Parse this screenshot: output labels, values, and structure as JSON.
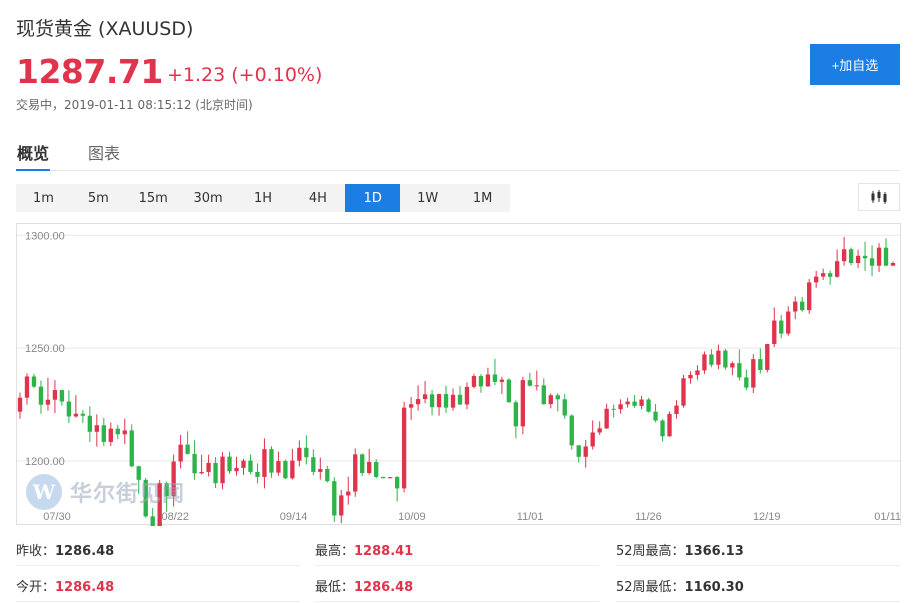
{
  "header": {
    "title": "现货黄金 (XAUUSD)",
    "price": "1287.71",
    "change": "+1.23 (+0.10%)",
    "status": "交易中，2019-01-11 08:15:12 (北京时间)",
    "add_watch_label": "+加自选"
  },
  "tabs": [
    {
      "label": "概览",
      "active": true
    },
    {
      "label": "图表",
      "active": false
    }
  ],
  "periods": [
    {
      "label": "1m",
      "active": false
    },
    {
      "label": "5m",
      "active": false
    },
    {
      "label": "15m",
      "active": false
    },
    {
      "label": "30m",
      "active": false
    },
    {
      "label": "1H",
      "active": false
    },
    {
      "label": "4H",
      "active": false
    },
    {
      "label": "1D",
      "active": true
    },
    {
      "label": "1W",
      "active": false
    },
    {
      "label": "1M",
      "active": false
    }
  ],
  "chart_type_icon": "candlestick-icon",
  "watermark": {
    "logo_letter": "W",
    "text": "华尔街见闻"
  },
  "colors": {
    "up": "#e0334c",
    "down": "#2db34a",
    "accent": "#1a7ee5"
  },
  "chart_data": {
    "type": "candlestick",
    "ylim": [
      1180,
      1305
    ],
    "y_ticks": [
      "1300.00",
      "1250.00",
      "1200.00"
    ],
    "x_tick_labels": [
      "07/30",
      "08/22",
      "09/14",
      "10/09",
      "11/01",
      "11/26",
      "12/19",
      "01/11"
    ],
    "grid": true,
    "ohlc": [
      [
        1221.8,
        1230.3,
        1218.7,
        1228.0
      ],
      [
        1228.0,
        1238.8,
        1224.9,
        1237.4
      ],
      [
        1237.4,
        1238.6,
        1232.3,
        1232.9
      ],
      [
        1232.9,
        1235.6,
        1220.9,
        1224.9
      ],
      [
        1224.9,
        1236.8,
        1222.3,
        1227.1
      ],
      [
        1227.1,
        1235.8,
        1221.2,
        1231.4
      ],
      [
        1231.4,
        1231.6,
        1224.5,
        1226.3
      ],
      [
        1226.3,
        1231.3,
        1216.8,
        1219.7
      ],
      [
        1219.7,
        1229.1,
        1219.2,
        1220.9
      ],
      [
        1220.9,
        1222.6,
        1216.8,
        1220.0
      ],
      [
        1220.0,
        1224.2,
        1208.4,
        1212.9
      ],
      [
        1212.9,
        1220.6,
        1206.3,
        1215.8
      ],
      [
        1215.8,
        1219.0,
        1206.6,
        1208.4
      ],
      [
        1208.4,
        1217.0,
        1206.6,
        1214.3
      ],
      [
        1214.3,
        1216.0,
        1209.7,
        1211.8
      ],
      [
        1211.8,
        1218.7,
        1207.5,
        1213.5
      ],
      [
        1213.5,
        1216.2,
        1197.2,
        1197.6
      ],
      [
        1197.6,
        1197.9,
        1185.4,
        1191.6
      ],
      [
        1191.6,
        1192.5,
        1174.8,
        1175.4
      ],
      [
        1175.4,
        1179.1,
        1167.9,
        1170.6
      ],
      [
        1170.6,
        1191.5,
        1169.5,
        1190.1
      ],
      [
        1190.1,
        1190.8,
        1177.4,
        1184.3
      ],
      [
        1184.3,
        1202.8,
        1179.8,
        1199.7
      ],
      [
        1199.7,
        1211.5,
        1196.6,
        1207.2
      ],
      [
        1207.2,
        1213.1,
        1202.8,
        1203.1
      ],
      [
        1203.1,
        1209.1,
        1191.6,
        1194.5
      ],
      [
        1194.5,
        1202.7,
        1194.0,
        1195.1
      ],
      [
        1195.1,
        1202.7,
        1193.1,
        1199.1
      ],
      [
        1199.1,
        1201.7,
        1188.0,
        1190.1
      ],
      [
        1190.1,
        1204.0,
        1187.4,
        1201.9
      ],
      [
        1201.9,
        1204.1,
        1194.3,
        1195.4
      ],
      [
        1195.4,
        1201.8,
        1193.5,
        1196.9
      ],
      [
        1196.9,
        1200.9,
        1193.8,
        1200.1
      ],
      [
        1200.1,
        1202.8,
        1194.1,
        1195.1
      ],
      [
        1195.1,
        1198.9,
        1190.0,
        1192.9
      ],
      [
        1192.9,
        1210.0,
        1187.8,
        1205.2
      ],
      [
        1205.2,
        1206.5,
        1192.5,
        1194.8
      ],
      [
        1194.8,
        1204.1,
        1193.4,
        1199.9
      ],
      [
        1199.9,
        1200.6,
        1191.9,
        1192.3
      ],
      [
        1192.3,
        1205.3,
        1191.7,
        1200.1
      ],
      [
        1200.1,
        1209.1,
        1197.5,
        1205.8
      ],
      [
        1205.8,
        1211.3,
        1198.4,
        1201.6
      ],
      [
        1201.6,
        1205.1,
        1193.6,
        1195.1
      ],
      [
        1195.1,
        1201.4,
        1191.7,
        1196.4
      ],
      [
        1196.4,
        1197.8,
        1190.4,
        1191.0
      ],
      [
        1191.0,
        1192.8,
        1172.9,
        1175.8
      ],
      [
        1175.8,
        1187.2,
        1172.4,
        1184.7
      ],
      [
        1184.7,
        1193.0,
        1180.6,
        1186.4
      ],
      [
        1186.4,
        1205.5,
        1184.1,
        1202.9
      ],
      [
        1202.9,
        1203.3,
        1193.2,
        1194.6
      ],
      [
        1194.6,
        1205.3,
        1193.9,
        1199.5
      ],
      [
        1199.5,
        1200.8,
        1192.3,
        1192.9
      ],
      [
        1192.9,
        1192.3,
        1192.9,
        1192.3
      ],
      [
        1192.3,
        1192.8,
        1192.3,
        1192.8
      ],
      [
        1192.8,
        1193.3,
        1182.0,
        1187.8
      ],
      [
        1187.8,
        1226.2,
        1186.0,
        1223.6
      ],
      [
        1223.6,
        1228.3,
        1218.2,
        1225.1
      ],
      [
        1225.1,
        1233.5,
        1222.3,
        1227.4
      ],
      [
        1227.4,
        1235.4,
        1225.5,
        1229.5
      ],
      [
        1229.5,
        1231.4,
        1220.2,
        1223.8
      ],
      [
        1223.8,
        1229.8,
        1220.0,
        1229.6
      ],
      [
        1229.6,
        1233.3,
        1221.3,
        1223.6
      ],
      [
        1223.6,
        1232.1,
        1222.2,
        1229.3
      ],
      [
        1229.3,
        1233.2,
        1224.8,
        1225.0
      ],
      [
        1225.0,
        1234.8,
        1222.9,
        1232.8
      ],
      [
        1232.8,
        1238.6,
        1232.1,
        1237.6
      ],
      [
        1237.6,
        1238.5,
        1230.2,
        1233.0
      ],
      [
        1233.0,
        1241.3,
        1232.8,
        1238.3
      ],
      [
        1238.3,
        1245.2,
        1233.6,
        1235.0
      ],
      [
        1235.0,
        1237.3,
        1229.7,
        1236.0
      ],
      [
        1236.0,
        1236.7,
        1225.8,
        1226.0
      ],
      [
        1226.0,
        1226.8,
        1210.0,
        1215.3
      ],
      [
        1215.3,
        1237.3,
        1211.8,
        1235.8
      ],
      [
        1235.8,
        1239.1,
        1233.0,
        1233.3
      ],
      [
        1233.3,
        1240.0,
        1231.2,
        1233.5
      ],
      [
        1233.5,
        1236.6,
        1224.8,
        1225.2
      ],
      [
        1225.2,
        1229.9,
        1223.3,
        1229.1
      ],
      [
        1229.1,
        1230.0,
        1221.9,
        1227.3
      ],
      [
        1227.3,
        1229.6,
        1218.6,
        1220.1
      ],
      [
        1220.1,
        1220.6,
        1205.0,
        1206.9
      ],
      [
        1206.9,
        1206.9,
        1199.3,
        1201.8
      ],
      [
        1201.8,
        1209.3,
        1197.0,
        1206.4
      ],
      [
        1206.4,
        1217.9,
        1205.0,
        1212.6
      ],
      [
        1212.6,
        1217.5,
        1211.5,
        1214.4
      ],
      [
        1214.4,
        1225.4,
        1214.1,
        1223.1
      ],
      [
        1223.1,
        1225.0,
        1219.2,
        1222.9
      ],
      [
        1222.9,
        1227.3,
        1220.9,
        1225.1
      ],
      [
        1225.1,
        1228.0,
        1223.6,
        1226.3
      ],
      [
        1226.3,
        1229.2,
        1223.5,
        1224.4
      ],
      [
        1224.4,
        1228.8,
        1222.9,
        1227.2
      ],
      [
        1227.2,
        1227.9,
        1221.4,
        1221.8
      ],
      [
        1221.8,
        1225.2,
        1217.1,
        1217.9
      ],
      [
        1217.9,
        1218.5,
        1208.6,
        1210.9
      ],
      [
        1210.9,
        1221.9,
        1210.7,
        1220.8
      ],
      [
        1220.8,
        1226.9,
        1218.7,
        1224.5
      ],
      [
        1224.5,
        1238.1,
        1223.6,
        1236.6
      ],
      [
        1236.6,
        1239.7,
        1234.2,
        1238.1
      ],
      [
        1238.1,
        1242.4,
        1236.0,
        1240.1
      ],
      [
        1240.1,
        1248.5,
        1238.5,
        1247.2
      ],
      [
        1247.2,
        1249.5,
        1241.5,
        1242.6
      ],
      [
        1242.6,
        1251.6,
        1240.6,
        1248.9
      ],
      [
        1248.9,
        1249.7,
        1240.4,
        1241.4
      ],
      [
        1241.4,
        1244.1,
        1238.0,
        1243.3
      ],
      [
        1243.3,
        1249.4,
        1235.6,
        1237.0
      ],
      [
        1237.0,
        1240.5,
        1231.3,
        1232.5
      ],
      [
        1232.5,
        1247.3,
        1230.1,
        1245.1
      ],
      [
        1245.1,
        1249.8,
        1238.7,
        1240.3
      ],
      [
        1240.3,
        1251.9,
        1239.2,
        1251.8
      ],
      [
        1251.8,
        1268.0,
        1250.4,
        1262.2
      ],
      [
        1262.2,
        1264.7,
        1254.4,
        1256.4
      ],
      [
        1256.4,
        1268.5,
        1255.5,
        1266.2
      ],
      [
        1266.2,
        1272.9,
        1262.8,
        1270.6
      ],
      [
        1270.6,
        1272.7,
        1266.1,
        1266.8
      ],
      [
        1266.8,
        1280.6,
        1265.2,
        1279.1
      ],
      [
        1279.1,
        1284.2,
        1276.7,
        1281.7
      ],
      [
        1281.7,
        1285.2,
        1280.2,
        1283.2
      ],
      [
        1283.2,
        1284.4,
        1278.1,
        1281.6
      ],
      [
        1281.6,
        1293.7,
        1281.2,
        1288.5
      ],
      [
        1288.5,
        1299.3,
        1286.5,
        1293.8
      ],
      [
        1293.8,
        1294.6,
        1286.7,
        1287.7
      ],
      [
        1287.7,
        1293.6,
        1285.4,
        1290.9
      ],
      [
        1290.9,
        1297.1,
        1284.2,
        1289.8
      ],
      [
        1289.8,
        1295.5,
        1281.8,
        1286.5
      ],
      [
        1286.5,
        1296.5,
        1283.7,
        1294.5
      ],
      [
        1294.5,
        1298.6,
        1287.5,
        1286.5
      ],
      [
        1286.5,
        1288.4,
        1286.5,
        1287.7
      ]
    ]
  },
  "stats": [
    {
      "label": "昨收：",
      "value": "1286.48",
      "red": false
    },
    {
      "label": "最高：",
      "value": "1288.41",
      "red": true
    },
    {
      "label": "52周最高：",
      "value": "1366.13",
      "red": false
    },
    {
      "label": "今开：",
      "value": "1286.48",
      "red": true
    },
    {
      "label": "最低：",
      "value": "1286.48",
      "red": true
    },
    {
      "label": "52周最低：",
      "value": "1160.30",
      "red": false
    }
  ]
}
